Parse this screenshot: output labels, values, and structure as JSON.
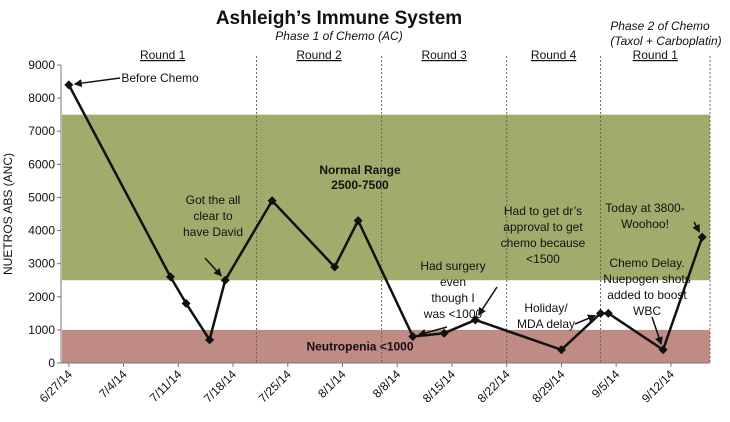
{
  "chart_data": {
    "type": "line",
    "title": "Ashleigh’s Immune System",
    "ylabel": "NUETROS ABS  (ANC)",
    "ylim": [
      0,
      9000
    ],
    "yticks": [
      0,
      1000,
      2000,
      3000,
      4000,
      5000,
      6000,
      7000,
      8000,
      9000
    ],
    "x_tick_labels": [
      "6/27/14",
      "7/4/14",
      "7/11/14",
      "7/18/14",
      "7/25/14",
      "8/1/14",
      "8/8/14",
      "8/15/14",
      "8/22/14",
      "8/29/14",
      "9/5/14",
      "9/12/14"
    ],
    "xlim": [
      "2014-06-26",
      "2014-09-17"
    ],
    "grid": false,
    "phases": [
      {
        "label": "Phase 1 of Chemo (AC)"
      },
      {
        "label_line1": "Phase 2 of Chemo",
        "label_line2": "(Taxol + Carboplatin)"
      }
    ],
    "rounds": [
      {
        "label": "Round 1",
        "start": "2014-06-27",
        "end": "2014-07-21"
      },
      {
        "label": "Round 2",
        "start": "2014-07-21",
        "end": "2014-08-06"
      },
      {
        "label": "Round 3",
        "start": "2014-08-06",
        "end": "2014-08-22"
      },
      {
        "label": "Round 4",
        "start": "2014-08-22",
        "end": "2014-09-03"
      },
      {
        "label": "Round 1",
        "start": "2014-09-03",
        "end": "2014-09-17"
      }
    ],
    "round_dividers": [
      "2014-07-21",
      "2014-08-06",
      "2014-08-22",
      "2014-09-03",
      "2014-09-17"
    ],
    "bands": [
      {
        "label_line1": "Normal Range",
        "label_line2": "2500-7500",
        "from": 2500,
        "to": 7500,
        "color": "#a3ab6c"
      },
      {
        "label_line1": "Neutropenia <1000",
        "label_line2": "",
        "from": 0,
        "to": 1000,
        "color": "#c08a85"
      }
    ],
    "series": [
      {
        "color": "#111111",
        "points": [
          {
            "x": "2014-06-27",
            "y": 8400
          },
          {
            "x": "2014-07-10",
            "y": 2600
          },
          {
            "x": "2014-07-12",
            "y": 1800
          },
          {
            "x": "2014-07-15",
            "y": 700
          },
          {
            "x": "2014-07-17",
            "y": 2500
          },
          {
            "x": "2014-07-23",
            "y": 4900
          },
          {
            "x": "2014-07-31",
            "y": 2900
          },
          {
            "x": "2014-08-03",
            "y": 4300
          },
          {
            "x": "2014-08-10",
            "y": 800
          },
          {
            "x": "2014-08-14",
            "y": 900
          },
          {
            "x": "2014-08-18",
            "y": 1300
          },
          {
            "x": "2014-08-29",
            "y": 400
          },
          {
            "x": "2014-09-03",
            "y": 1500
          },
          {
            "x": "2014-09-04",
            "y": 1500
          },
          {
            "x": "2014-09-11",
            "y": 400
          },
          {
            "x": "2014-09-16",
            "y": 3800
          }
        ]
      }
    ],
    "annotations": [
      {
        "lines": [
          "Before Chemo"
        ],
        "point_index": 0
      },
      {
        "lines": [
          "Got the all",
          "clear to",
          "have David"
        ],
        "point_index": 4
      },
      {
        "lines": [
          "Had surgery",
          "even",
          "though I",
          "was <1000"
        ],
        "point_index": 8
      },
      {
        "lines": [
          "Had to get dr’s",
          "approval to get",
          "chemo because",
          "<1500"
        ],
        "point_index": 10
      },
      {
        "lines": [
          "Holiday/",
          "MDA delay"
        ],
        "point_index": 12
      },
      {
        "lines": [
          "Chemo Delay.",
          "Nuepogen shots",
          "added to boost",
          "WBC"
        ],
        "point_index": 14
      },
      {
        "lines": [
          "Today at 3800-",
          "Woohoo!"
        ],
        "point_index": 15
      }
    ]
  }
}
